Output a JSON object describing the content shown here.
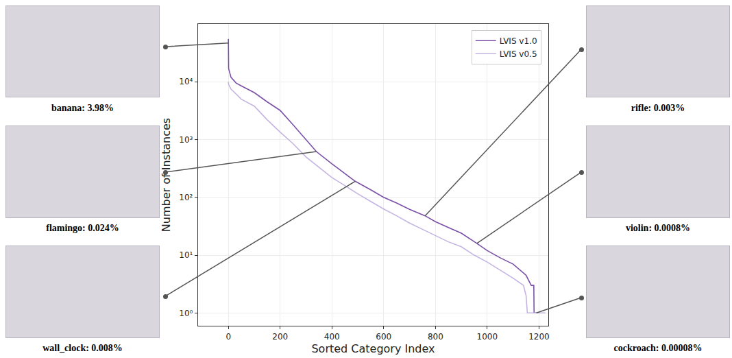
{
  "chart_data": {
    "type": "line",
    "x_label": "Sorted Category Index",
    "y_label": "Number of Instances",
    "log": "y",
    "grid": true,
    "legend": "upper right",
    "xlim": [
      -117,
      1236
    ],
    "xticks": [
      0,
      200,
      400,
      600,
      800,
      1000,
      1200
    ],
    "ylim": [
      0.6,
      100000
    ],
    "yticks": [
      {
        "value": 1,
        "label": "10⁰"
      },
      {
        "value": 10,
        "label": "10¹"
      },
      {
        "value": 100,
        "label": "10²"
      },
      {
        "value": 1000,
        "label": "10³"
      },
      {
        "value": 10000,
        "label": "10⁴"
      }
    ],
    "series": [
      {
        "name": "LVIS v1.0",
        "color": "#7a4fa8",
        "x": [
          0,
          1,
          10,
          30,
          50,
          100,
          150,
          200,
          250,
          300,
          340,
          400,
          450,
          490,
          550,
          600,
          650,
          700,
          760,
          800,
          850,
          900,
          960,
          1000,
          1050,
          1100,
          1150,
          1170,
          1180,
          1181,
          1203
        ],
        "values": [
          55000,
          17000,
          12000,
          9500,
          8500,
          6500,
          4500,
          3200,
          1800,
          1000,
          620,
          380,
          260,
          190,
          135,
          100,
          80,
          62,
          48,
          38,
          30,
          24,
          16,
          12,
          9,
          7,
          4.5,
          3,
          3,
          1,
          1
        ]
      },
      {
        "name": "LVIS v0.5",
        "color": "#c4b4e2",
        "x": [
          0,
          1,
          10,
          50,
          100,
          150,
          200,
          250,
          300,
          350,
          400,
          450,
          500,
          550,
          600,
          650,
          700,
          750,
          800,
          850,
          900,
          950,
          1000,
          1050,
          1100,
          1140,
          1150,
          1155,
          1225
        ],
        "values": [
          10000,
          9000,
          7500,
          5000,
          3800,
          2200,
          1350,
          850,
          500,
          330,
          220,
          160,
          115,
          85,
          63,
          48,
          36,
          28,
          22,
          17,
          14,
          10,
          7.6,
          5.5,
          4,
          3,
          2,
          1,
          1
        ]
      }
    ],
    "annotations": [
      {
        "text": "banana: 3.98%",
        "x": 0,
        "y": 47000
      },
      {
        "text": "flamingo: 0.024%",
        "x": 340,
        "y": 620
      },
      {
        "text": "wall_clock: 0.008%",
        "x": 490,
        "y": 190
      },
      {
        "text": "rifle: 0.003%",
        "x": 760,
        "y": 48
      },
      {
        "text": "violin: 0.0008%",
        "x": 960,
        "y": 16
      },
      {
        "text": "cockroach: 0.00008%",
        "x": 1190,
        "y": 1
      }
    ]
  }
}
